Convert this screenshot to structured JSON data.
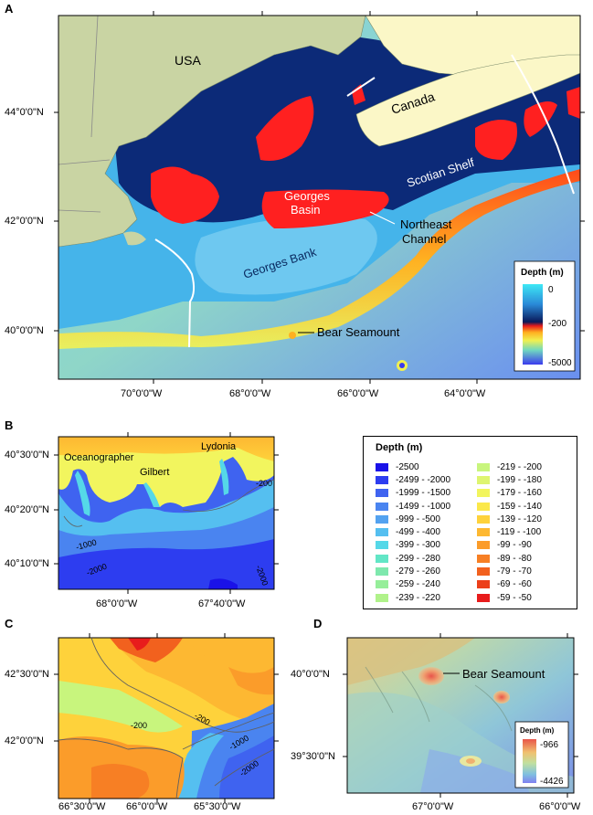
{
  "panel_a": {
    "letter": "A",
    "lat_labels": [
      "44°0'0\"N",
      "42°0'0\"N",
      "40°0'0\"N"
    ],
    "lon_labels": [
      "70°0'0\"W",
      "68°0'0\"W",
      "66°0'0\"W",
      "64°0'0\"W"
    ],
    "labels": {
      "usa": "USA",
      "canada": "Canada",
      "scotian_shelf": "Scotian Shelf",
      "georges_basin_1": "Georges",
      "georges_basin_2": "Basin",
      "northeast_1": "Northeast",
      "northeast_2": "Channel",
      "georges_bank": "Georges Bank",
      "bear_seamount": "Bear Seamount"
    },
    "legend": {
      "title": "Depth (m)",
      "top": "0",
      "mid": "-200",
      "bottom": "-5000"
    }
  },
  "panel_b": {
    "letter": "B",
    "lat_labels": [
      "40°30'0\"N",
      "40°20'0\"N",
      "40°10'0\"N"
    ],
    "lon_labels": [
      "68°0'0\"W",
      "67°40'0\"W"
    ],
    "labels": {
      "oceanographer": "Oceanographer",
      "gilbert": "Gilbert",
      "lydonia": "Lydonia",
      "c200": "-200",
      "c1000": "-1000",
      "c2000a": "-2000",
      "c2000b": "-2000"
    }
  },
  "depth_legend": {
    "title": "Depth (m)",
    "colors": {
      "c1": "#1a12e8",
      "c2": "#2d3df0",
      "c3": "#3f63f0",
      "c4": "#4a84f0",
      "c5": "#53a2f0",
      "c6": "#55bff0",
      "c7": "#55d8e8",
      "c8": "#62e6c6",
      "c9": "#7ee8ad",
      "c10": "#96ee9a",
      "c11": "#b0f28a",
      "c12": "#c8f57d",
      "c13": "#def570",
      "c14": "#f2f55e",
      "c15": "#fbe84a",
      "c16": "#fed23b",
      "c17": "#fdb832",
      "c18": "#fb9c2a",
      "c19": "#f77f24",
      "c20": "#f2611e",
      "c21": "#ec3f1a",
      "c22": "#e81c1c"
    },
    "col1": [
      "-2500",
      "-2499 - -2000",
      "-1999 - -1500",
      "-1499 - -1000",
      "-999 - -500",
      "-499 - -400",
      "-399 - -300",
      "-299 - -280",
      "-279 - -260",
      "-259 - -240",
      "-239 - -220"
    ],
    "col2": [
      "-219 - -200",
      "-199 - -180",
      "-179 - -160",
      "-159 - -140",
      "-139 - -120",
      "-119 - -100",
      "-99 - -90",
      "-89 - -80",
      "-79 - -70",
      "-69 - -60",
      "-59 - -50"
    ]
  },
  "panel_c": {
    "letter": "C",
    "lat_labels": [
      "42°30'0\"N",
      "42°0'0\"N"
    ],
    "lon_labels": [
      "66°30'0\"W",
      "66°0'0\"W",
      "65°30'0\"W"
    ],
    "labels": {
      "c200a": "-200",
      "c200b": "-200",
      "c1000": "-1000",
      "c2000": "-2000"
    }
  },
  "panel_d": {
    "letter": "D",
    "lat_labels": [
      "40°0'0\"N",
      "39°30'0\"N"
    ],
    "lon_labels": [
      "67°0'0\"W",
      "66°0'0\"W"
    ],
    "bear_seamount": "Bear Seamount",
    "legend": {
      "title": "Depth (m)",
      "top": "-966",
      "bottom": "-4426"
    }
  }
}
